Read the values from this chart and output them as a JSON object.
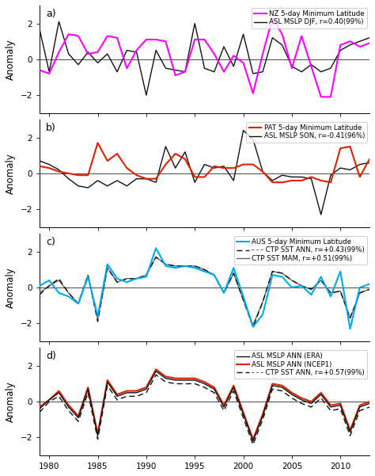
{
  "years": [
    1979,
    1980,
    1981,
    1982,
    1983,
    1984,
    1985,
    1986,
    1987,
    1988,
    1989,
    1990,
    1991,
    1992,
    1993,
    1994,
    1995,
    1996,
    1997,
    1998,
    1999,
    2000,
    2001,
    2002,
    2003,
    2004,
    2005,
    2006,
    2007,
    2008,
    2009,
    2010,
    2011,
    2012,
    2013
  ],
  "panel_a": {
    "label": "a)",
    "legend1": "NZ 5-day Minimum Latitude",
    "legend2": "ASL MSLP DJF, r=0.40(99%)",
    "nz": [
      -0.6,
      -0.8,
      0.4,
      1.4,
      1.3,
      0.3,
      0.4,
      1.3,
      1.2,
      -0.5,
      0.5,
      1.1,
      1.1,
      1.0,
      -0.9,
      -0.7,
      1.1,
      1.1,
      0.3,
      -0.7,
      0.2,
      -0.2,
      -1.9,
      0.3,
      2.3,
      1.4,
      -0.5,
      1.3,
      -0.4,
      -2.1,
      -2.1,
      0.8,
      1.0,
      0.7,
      0.9
    ],
    "asl": [
      1.7,
      -0.7,
      2.1,
      0.3,
      -0.3,
      0.4,
      -0.2,
      0.3,
      -0.7,
      0.5,
      0.4,
      -2.0,
      0.5,
      -0.5,
      -0.6,
      -0.7,
      2.0,
      -0.5,
      -0.7,
      0.7,
      -0.4,
      1.4,
      -0.8,
      -0.7,
      1.2,
      0.8,
      -0.4,
      -0.7,
      -0.3,
      -0.7,
      -0.5,
      0.5,
      0.8,
      1.0,
      1.2
    ]
  },
  "panel_b": {
    "label": "b)",
    "legend1": "PAT 5-day Minimum Latitude",
    "legend2": "ASL MSLP SON, r=-0.41(96%)",
    "pat": [
      0.4,
      0.3,
      0.1,
      0.0,
      -0.1,
      -0.1,
      1.7,
      0.7,
      1.1,
      0.3,
      -0.1,
      -0.3,
      -0.3,
      0.5,
      1.1,
      0.8,
      -0.2,
      -0.2,
      0.4,
      0.3,
      0.3,
      0.5,
      0.5,
      0.1,
      -0.5,
      -0.5,
      -0.4,
      -0.4,
      -0.2,
      -0.4,
      -0.5,
      1.4,
      1.5,
      -0.2,
      0.8
    ],
    "asl": [
      0.7,
      0.5,
      0.2,
      -0.3,
      -0.7,
      -0.8,
      -0.4,
      -0.7,
      -0.4,
      -0.7,
      -0.3,
      -0.3,
      -0.5,
      1.5,
      0.3,
      1.2,
      -0.5,
      0.5,
      0.3,
      0.4,
      -0.4,
      2.4,
      1.9,
      0.1,
      -0.4,
      -0.1,
      -0.2,
      -0.2,
      -0.3,
      -2.3,
      -0.1,
      0.3,
      0.2,
      0.5,
      0.6
    ]
  },
  "panel_c": {
    "label": "c)",
    "legend1": "AUS 5-day Minimum Latitude",
    "legend2": "- - - CTP SST ANN, r=+0.43(99%)",
    "legend3": "CTP SST MAM, r=+0.51(99%)",
    "aus": [
      0.1,
      0.4,
      -0.3,
      -0.5,
      -0.9,
      0.6,
      -1.6,
      1.3,
      0.5,
      0.3,
      0.5,
      0.6,
      2.2,
      1.2,
      1.1,
      1.2,
      1.1,
      0.9,
      0.7,
      -0.3,
      1.1,
      -0.5,
      -2.2,
      -1.5,
      0.7,
      0.6,
      0.0,
      0.1,
      -0.4,
      0.6,
      -0.5,
      0.9,
      -2.3,
      0.0,
      0.2
    ],
    "ctp_ann": [
      -0.4,
      0.1,
      0.5,
      -0.3,
      -0.9,
      0.7,
      -1.9,
      1.1,
      0.3,
      0.5,
      0.5,
      0.7,
      1.7,
      1.3,
      1.2,
      1.2,
      1.2,
      1.0,
      0.7,
      -0.3,
      0.8,
      -0.7,
      -2.2,
      -0.8,
      0.9,
      0.8,
      0.4,
      0.1,
      -0.1,
      0.4,
      -0.3,
      -0.2,
      -1.7,
      -0.3,
      -0.1
    ],
    "ctp_mam": [
      -0.3,
      0.1,
      0.4,
      -0.3,
      -0.9,
      0.7,
      -1.8,
      1.1,
      0.3,
      0.5,
      0.5,
      0.7,
      1.7,
      1.3,
      1.2,
      1.2,
      1.2,
      1.0,
      0.7,
      -0.3,
      0.8,
      -0.7,
      -2.1,
      -0.8,
      0.9,
      0.8,
      0.4,
      0.1,
      -0.1,
      0.4,
      -0.3,
      -0.2,
      -1.7,
      -0.3,
      -0.1
    ]
  },
  "panel_d": {
    "label": "d)",
    "legend1": "ASL MSLP ANN (ERA)",
    "legend2": "ASL MSLP ANN (NCEP1)",
    "legend3": "- - - CTP SST ANN, r=+0.57(99%)",
    "era": [
      -0.4,
      0.1,
      0.5,
      -0.3,
      -0.9,
      0.7,
      -1.9,
      1.1,
      0.3,
      0.5,
      0.5,
      0.7,
      1.7,
      1.3,
      1.2,
      1.2,
      1.2,
      1.0,
      0.7,
      -0.3,
      0.8,
      -0.7,
      -2.2,
      -0.8,
      0.9,
      0.8,
      0.4,
      0.1,
      -0.1,
      0.4,
      -0.3,
      -0.2,
      -1.7,
      -0.3,
      -0.1
    ],
    "ncep": [
      -0.3,
      0.1,
      0.6,
      -0.2,
      -0.8,
      0.8,
      -1.8,
      1.2,
      0.4,
      0.6,
      0.6,
      0.8,
      1.8,
      1.4,
      1.3,
      1.3,
      1.3,
      1.1,
      0.8,
      -0.2,
      0.9,
      -0.6,
      -2.1,
      -0.7,
      1.0,
      0.9,
      0.5,
      0.2,
      0.0,
      0.5,
      -0.2,
      -0.1,
      -1.6,
      -0.2,
      0.0
    ],
    "ctp": [
      -0.6,
      -0.0,
      0.3,
      -0.5,
      -1.1,
      0.5,
      -2.1,
      0.9,
      0.1,
      0.3,
      0.3,
      0.5,
      1.5,
      1.1,
      1.0,
      1.0,
      1.0,
      0.8,
      0.5,
      -0.5,
      0.6,
      -0.9,
      -2.4,
      -1.0,
      0.7,
      0.6,
      0.2,
      -0.1,
      -0.3,
      0.2,
      -0.5,
      -0.4,
      -1.9,
      -0.5,
      -0.3
    ]
  },
  "color_magenta": "#FF00FF",
  "color_red": "#DD2200",
  "color_black": "#111111",
  "color_cyan": "#00AAEE",
  "color_darkgray": "#666666",
  "ylim": [
    -3.0,
    3.0
  ],
  "yticks": [
    -2,
    0,
    2
  ],
  "xlim": [
    1979,
    2013
  ],
  "xticks": [
    1980,
    1985,
    1990,
    1995,
    2000,
    2005,
    2010
  ],
  "ylabel": "Anomaly"
}
